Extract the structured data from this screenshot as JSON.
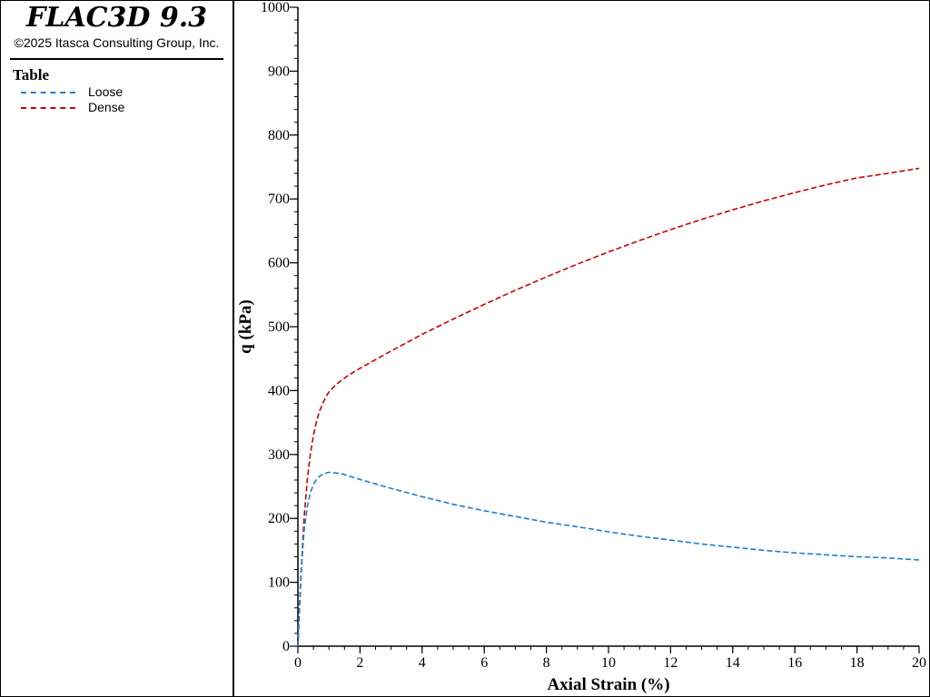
{
  "header": {
    "title": "FLAC3D 9.3",
    "copyright": "©2025 Itasca Consulting Group, Inc."
  },
  "legend": {
    "title": "Table",
    "items": [
      {
        "label": "Loose",
        "color": "#1a7fd4"
      },
      {
        "label": "Dense",
        "color": "#cc0000"
      }
    ]
  },
  "chart_data": {
    "type": "line",
    "xlabel": "Axial Strain (%)",
    "ylabel": "q (kPa)",
    "xlim": [
      0,
      20
    ],
    "ylim": [
      0,
      1000
    ],
    "xticks": [
      0,
      2,
      4,
      6,
      8,
      10,
      12,
      14,
      16,
      18,
      20
    ],
    "yticks": [
      0,
      100,
      200,
      300,
      400,
      500,
      600,
      700,
      800,
      900,
      1000
    ],
    "grid": false,
    "legend_position": "left panel",
    "series": [
      {
        "name": "Loose",
        "color": "#1a7fd4",
        "x": [
          0,
          0.05,
          0.1,
          0.2,
          0.3,
          0.4,
          0.5,
          0.6,
          0.7,
          0.8,
          0.9,
          1.0,
          1.1,
          1.2,
          1.4,
          1.6,
          2,
          3,
          4,
          5,
          6,
          7,
          8,
          9,
          10,
          11,
          12,
          13,
          14,
          15,
          16,
          17,
          18,
          19,
          20
        ],
        "y": [
          0,
          60,
          115,
          180,
          218,
          240,
          253,
          261,
          266,
          269,
          271,
          272,
          272,
          271,
          270,
          267,
          261,
          247,
          234,
          222,
          212,
          203,
          194,
          187,
          179,
          172,
          166,
          160,
          155,
          150,
          146,
          143,
          140,
          138,
          135
        ]
      },
      {
        "name": "Dense",
        "color": "#cc0000",
        "x": [
          0,
          0.05,
          0.1,
          0.2,
          0.3,
          0.4,
          0.5,
          0.6,
          0.7,
          0.8,
          0.9,
          1.0,
          1.2,
          1.4,
          1.6,
          2,
          3,
          4,
          5,
          6,
          7,
          8,
          9,
          10,
          11,
          12,
          13,
          14,
          15,
          16,
          17,
          18,
          19,
          20
        ],
        "y": [
          0,
          55,
          110,
          200,
          260,
          300,
          330,
          352,
          368,
          380,
          390,
          398,
          408,
          416,
          423,
          435,
          462,
          488,
          512,
          535,
          557,
          578,
          598,
          617,
          635,
          652,
          668,
          683,
          697,
          710,
          722,
          733,
          740,
          748
        ]
      }
    ]
  }
}
